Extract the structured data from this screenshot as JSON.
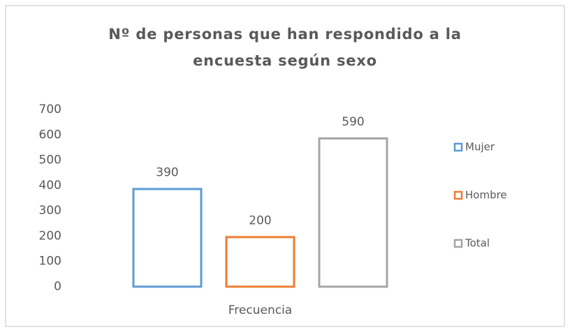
{
  "chart_data": {
    "type": "bar",
    "title": "Nº de personas que han respondido a la encuesta según sexo",
    "categories": [
      "Frecuencia"
    ],
    "series": [
      {
        "name": "Mujer",
        "color": "#5b9bd5",
        "values": [
          390
        ]
      },
      {
        "name": "Hombre",
        "color": "#ed7d31",
        "values": [
          200
        ]
      },
      {
        "name": "Total",
        "color": "#a5a5a5",
        "values": [
          590
        ]
      }
    ],
    "ylim": [
      0,
      700
    ],
    "yticks": [
      0,
      100,
      200,
      300,
      400,
      500,
      600,
      700
    ],
    "grid": false,
    "legend": "right",
    "data_labels": true
  }
}
